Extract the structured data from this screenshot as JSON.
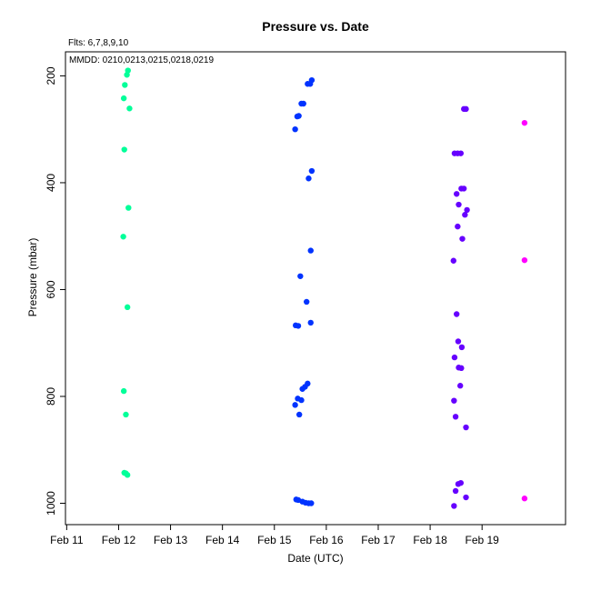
{
  "chart_data": {
    "type": "scatter",
    "title": "Pressure  vs. Date",
    "fits_label": "Flts: 6,7,8,9,10",
    "mmdd_label": "MMDD: 0210,0213,0215,0218,0219",
    "xlabel": "Date (UTC)",
    "ylabel": "Pressure (mbar)",
    "x_ticks": [
      "Feb 11",
      "Feb 12",
      "Feb 13",
      "Feb 14",
      "Feb 15",
      "Feb 16",
      "Feb 17",
      "Feb 18",
      "Feb 19"
    ],
    "y_ticks": [
      "200",
      "400",
      "600",
      "800",
      "1000"
    ],
    "y_tick_values": [
      200,
      400,
      600,
      800,
      1000
    ],
    "xlim": [
      "2/10 23:26",
      "2/20 14:35"
    ],
    "ylim": [
      1040,
      155
    ],
    "y_reversed": true,
    "grid": false,
    "series": [
      {
        "color": "#00ff99",
        "points": [
          [
            "2/12 04:19",
            190
          ],
          [
            "2/12 03:50",
            198
          ],
          [
            "2/12 02:53",
            217
          ],
          [
            "2/12 02:24",
            242
          ],
          [
            "2/12 05:02",
            261
          ],
          [
            "2/12 02:38",
            338
          ],
          [
            "2/12 04:33",
            447
          ],
          [
            "2/12 02:10",
            501
          ],
          [
            "2/12 04:05",
            633
          ],
          [
            "2/12 02:24",
            790
          ],
          [
            "2/12 03:22",
            834
          ],
          [
            "2/12 02:38",
            943
          ],
          [
            "2/12 03:22",
            944
          ],
          [
            "2/12 04:05",
            947
          ]
        ]
      },
      {
        "color": "#0033ff",
        "points": [
          [
            "2/15 17:17",
            208
          ],
          [
            "2/15 15:22",
            215
          ],
          [
            "2/15 16:34",
            215
          ],
          [
            "2/15 13:26",
            252
          ],
          [
            "2/15 12:29",
            252
          ],
          [
            "2/15 11:17",
            275
          ],
          [
            "2/15 10:34",
            276
          ],
          [
            "2/15 09:36",
            300
          ],
          [
            "2/15 17:17",
            378
          ],
          [
            "2/15 15:50",
            392
          ],
          [
            "2/15 16:48",
            527
          ],
          [
            "2/15 12:00",
            575
          ],
          [
            "2/15 14:53",
            623
          ],
          [
            "2/15 09:50",
            667
          ],
          [
            "2/15 11:02",
            668
          ],
          [
            "2/15 16:48",
            662
          ],
          [
            "2/15 15:22",
            776
          ],
          [
            "2/15 14:10",
            782
          ],
          [
            "2/15 12:58",
            786
          ],
          [
            "2/15 10:48",
            804
          ],
          [
            "2/15 12:29",
            807
          ],
          [
            "2/15 09:36",
            816
          ],
          [
            "2/15 11:31",
            834
          ],
          [
            "2/15 10:05",
            993
          ],
          [
            "2/15 11:02",
            994
          ],
          [
            "2/15 12:58",
            997
          ],
          [
            "2/15 14:24",
            999
          ],
          [
            "2/15 15:50",
            1000
          ],
          [
            "2/15 17:02",
            1000
          ]
        ]
      },
      {
        "color": "#6600ff",
        "points": [
          [
            "2/18 15:36",
            262
          ],
          [
            "2/18 16:34",
            262
          ],
          [
            "2/18 11:17",
            345
          ],
          [
            "2/18 12:43",
            345
          ],
          [
            "2/18 14:10",
            345
          ],
          [
            "2/18 14:24",
            411
          ],
          [
            "2/18 15:36",
            411
          ],
          [
            "2/18 12:14",
            421
          ],
          [
            "2/18 13:12",
            441
          ],
          [
            "2/18 17:02",
            451
          ],
          [
            "2/18 16:05",
            460
          ],
          [
            "2/18 12:43",
            482
          ],
          [
            "2/18 14:53",
            505
          ],
          [
            "2/18 10:48",
            546
          ],
          [
            "2/18 12:14",
            646
          ],
          [
            "2/18 12:58",
            697
          ],
          [
            "2/18 14:38",
            708
          ],
          [
            "2/18 11:17",
            727
          ],
          [
            "2/18 13:12",
            746
          ],
          [
            "2/18 14:24",
            747
          ],
          [
            "2/18 13:55",
            780
          ],
          [
            "2/18 11:02",
            808
          ],
          [
            "2/18 11:46",
            838
          ],
          [
            "2/18 16:34",
            858
          ],
          [
            "2/18 14:10",
            962
          ],
          [
            "2/18 12:58",
            964
          ],
          [
            "2/18 11:46",
            977
          ],
          [
            "2/18 16:34",
            989
          ],
          [
            "2/18 11:02",
            1005
          ]
        ]
      },
      {
        "color": "#ff00ff",
        "points": [
          [
            "2/19 19:38",
            288
          ],
          [
            "2/19 19:38",
            545
          ],
          [
            "2/19 19:38",
            991
          ]
        ]
      }
    ]
  }
}
